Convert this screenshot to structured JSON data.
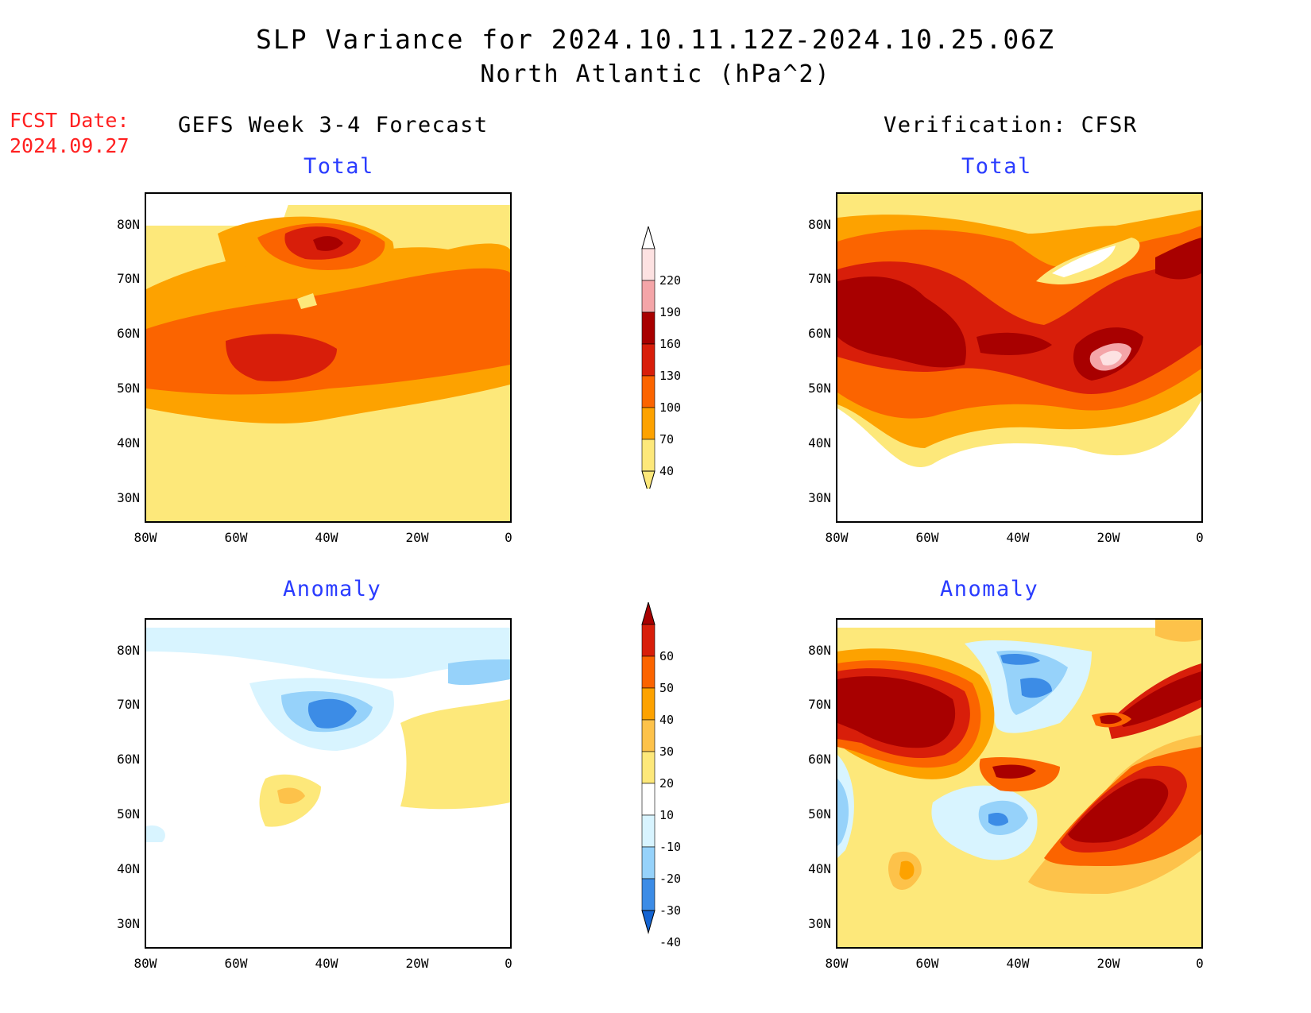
{
  "header": {
    "title": "SLP Variance for 2024.10.11.12Z-2024.10.25.06Z",
    "subtitle": "North Atlantic (hPa^2)",
    "fcst_line1": "FCST Date:",
    "fcst_line2": "2024.09.27"
  },
  "columns": {
    "left": "GEFS Week 3-4 Forecast",
    "right": "Verification: CFSR"
  },
  "panels": {
    "total": "Total",
    "anomaly": "Anomaly"
  },
  "axes": {
    "y_labels": [
      "80N",
      "70N",
      "60N",
      "50N",
      "40N",
      "30N"
    ],
    "x_labels": [
      "80W",
      "60W",
      "40W",
      "20W",
      "0"
    ]
  },
  "colorbar_total": {
    "labels": [
      "220",
      "190",
      "160",
      "130",
      "100",
      "70",
      "40"
    ],
    "colors": [
      "#fde2e2",
      "#f4a5a8",
      "#a80000",
      "#d81e0a",
      "#fb6400",
      "#fda200",
      "#fde87a"
    ]
  },
  "colorbar_anomaly": {
    "labels": [
      "60",
      "50",
      "40",
      "30",
      "20",
      "10",
      "-10",
      "-20",
      "-30",
      "-40"
    ],
    "colors": [
      "#a80000",
      "#d81e0a",
      "#fb6400",
      "#fda200",
      "#fdc24a",
      "#fde87a",
      "#ffffff",
      "#d8f4ff",
      "#96d2fa",
      "#3c8ce6",
      "#1464d2"
    ]
  }
}
